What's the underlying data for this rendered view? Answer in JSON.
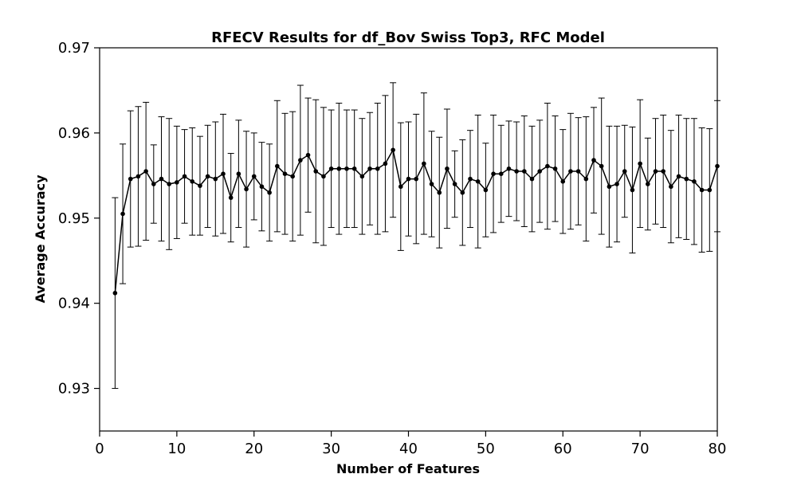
{
  "chart_data": {
    "type": "line",
    "title": "RFECV Results for df_Bov Swiss Top3, RFC Model",
    "xlabel": "Number of Features",
    "ylabel": "Average Accuracy",
    "xlim": [
      0,
      80
    ],
    "ylim": [
      0.925,
      0.97
    ],
    "xticks": [
      0,
      10,
      20,
      30,
      40,
      50,
      60,
      70,
      80
    ],
    "yticks": [
      0.93,
      0.94,
      0.95,
      0.96,
      0.97
    ],
    "xtick_labels": [
      "0",
      "10",
      "20",
      "30",
      "40",
      "50",
      "60",
      "70",
      "80"
    ],
    "ytick_labels": [
      "0.93",
      "0.94",
      "0.95",
      "0.96",
      "0.97"
    ],
    "grid": false,
    "legend": "none",
    "color": "#000000",
    "series": [
      {
        "x": [
          2,
          3,
          4,
          5,
          6,
          7,
          8,
          9,
          10,
          11,
          12,
          13,
          14,
          15,
          16,
          17,
          18,
          19,
          20,
          21,
          22,
          23,
          24,
          25,
          26,
          27,
          28,
          29,
          30,
          31,
          32,
          33,
          34,
          35,
          36,
          37,
          38,
          39,
          40,
          41,
          42,
          43,
          44,
          45,
          46,
          47,
          48,
          49,
          50,
          51,
          52,
          53,
          54,
          55,
          56,
          57,
          58,
          59,
          60,
          61,
          62,
          63,
          64,
          65,
          66,
          67,
          68,
          69,
          70,
          71,
          72,
          73,
          74,
          75,
          76,
          77,
          78,
          79,
          80
        ],
        "y": [
          0.9412,
          0.9505,
          0.9546,
          0.9549,
          0.9555,
          0.954,
          0.9546,
          0.954,
          0.9542,
          0.9549,
          0.9543,
          0.9538,
          0.9549,
          0.9546,
          0.9552,
          0.9524,
          0.9552,
          0.9534,
          0.9549,
          0.9537,
          0.953,
          0.9561,
          0.9552,
          0.9549,
          0.9568,
          0.9574,
          0.9555,
          0.9549,
          0.9558,
          0.9558,
          0.9558,
          0.9558,
          0.9549,
          0.9558,
          0.9558,
          0.9564,
          0.958,
          0.9537,
          0.9546,
          0.9546,
          0.9564,
          0.954,
          0.953,
          0.9558,
          0.954,
          0.953,
          0.9546,
          0.9543,
          0.9533,
          0.9552,
          0.9552,
          0.9558,
          0.9555,
          0.9555,
          0.9546,
          0.9555,
          0.9561,
          0.9558,
          0.9543,
          0.9555,
          0.9555,
          0.9546,
          0.9568,
          0.9561,
          0.9537,
          0.954,
          0.9555,
          0.9533,
          0.9564,
          0.954,
          0.9555,
          0.9555,
          0.9537,
          0.9549,
          0.9546,
          0.9543,
          0.9533,
          0.9533,
          0.9561
        ],
        "yerr": [
          0.0112,
          0.0082,
          0.008,
          0.0082,
          0.0081,
          0.0046,
          0.0073,
          0.0077,
          0.0066,
          0.0055,
          0.0063,
          0.0058,
          0.006,
          0.0067,
          0.007,
          0.0052,
          0.0063,
          0.0068,
          0.0051,
          0.0052,
          0.0057,
          0.0077,
          0.0071,
          0.0076,
          0.0088,
          0.0067,
          0.0084,
          0.0081,
          0.0069,
          0.0077,
          0.0069,
          0.0069,
          0.0068,
          0.0066,
          0.0077,
          0.008,
          0.0079,
          0.0075,
          0.0067,
          0.0076,
          0.0083,
          0.0062,
          0.0065,
          0.007,
          0.0039,
          0.0062,
          0.0057,
          0.0078,
          0.0055,
          0.0069,
          0.0057,
          0.0056,
          0.0058,
          0.0065,
          0.0062,
          0.006,
          0.0074,
          0.0062,
          0.0061,
          0.0068,
          0.0063,
          0.0073,
          0.0062,
          0.008,
          0.0071,
          0.0068,
          0.0054,
          0.0074,
          0.0075,
          0.0054,
          0.0062,
          0.0066,
          0.0066,
          0.0072,
          0.0071,
          0.0074,
          0.0073,
          0.0072,
          0.0077
        ]
      }
    ]
  }
}
